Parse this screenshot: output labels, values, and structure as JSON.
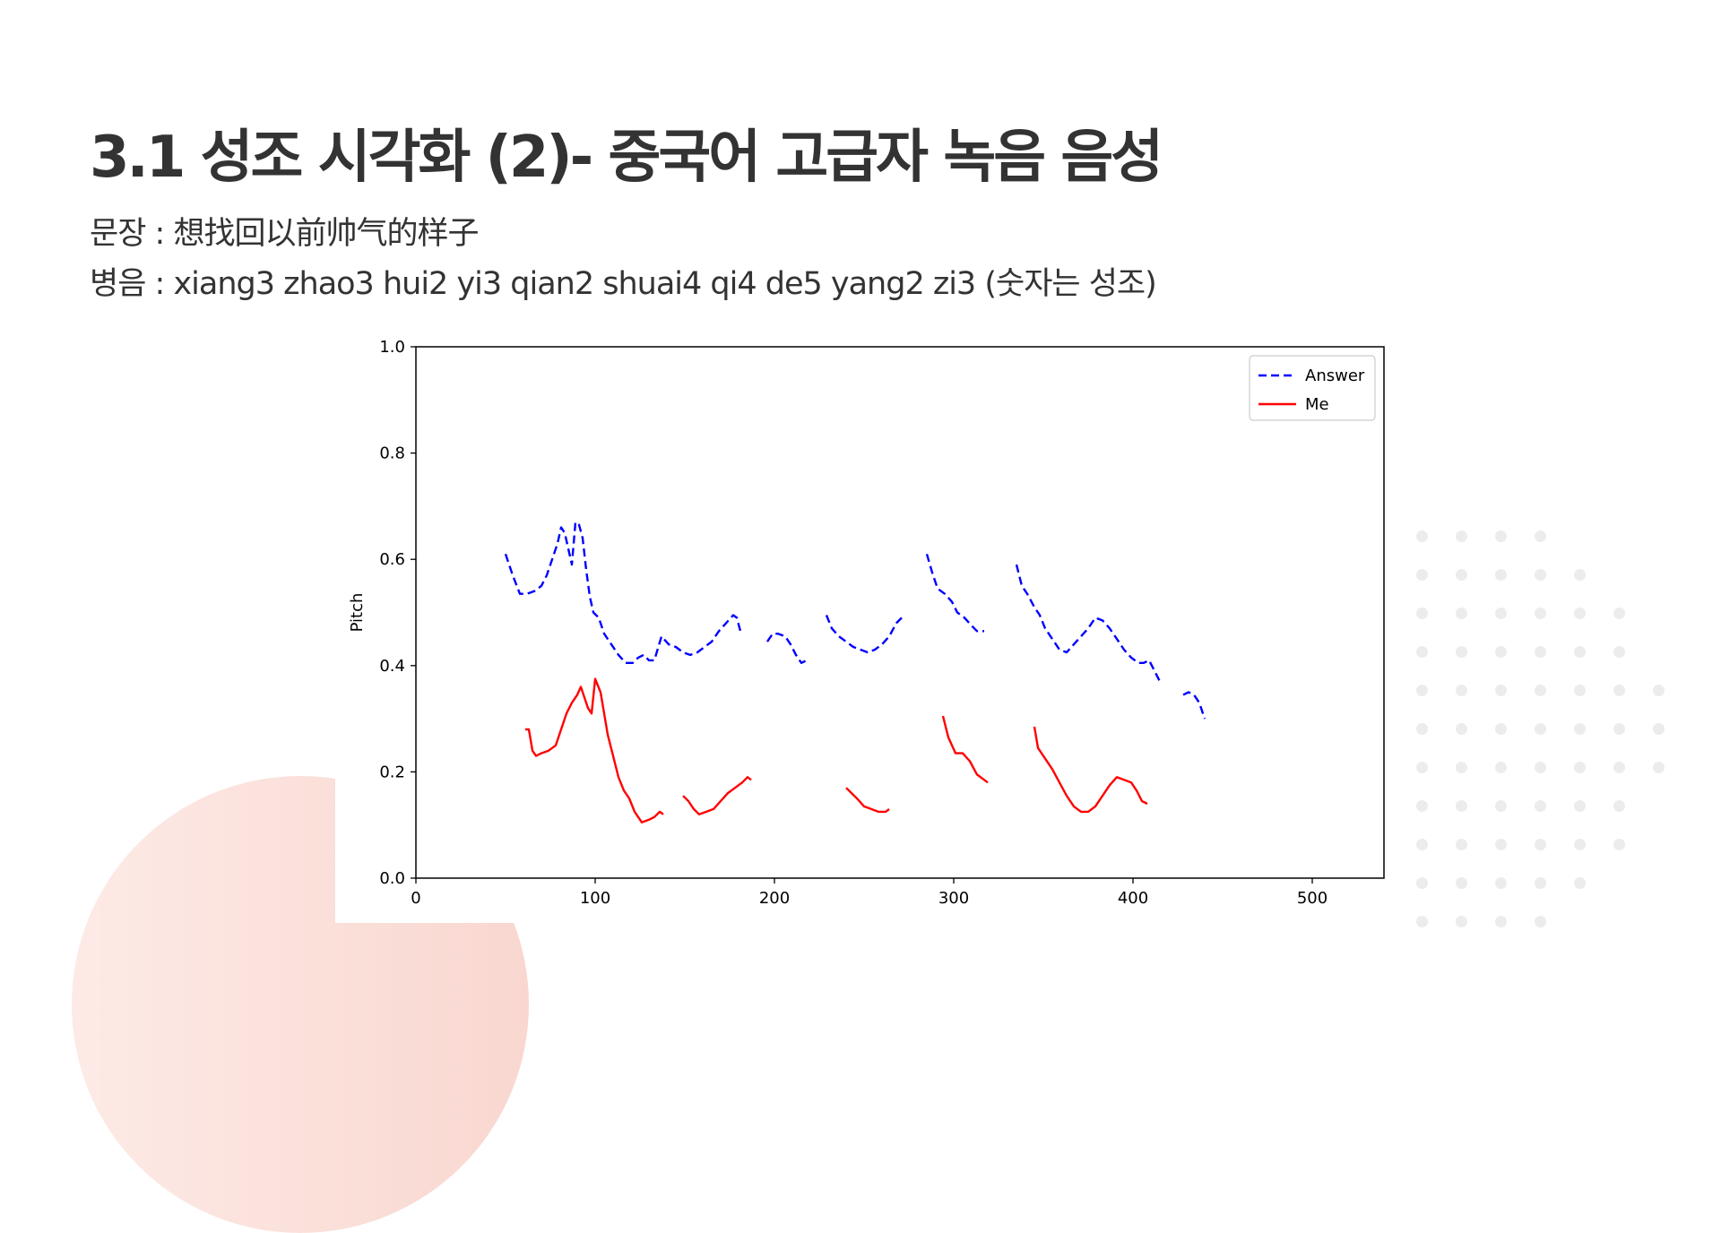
{
  "slide": {
    "title": "3.1 성조 시각화 (2)- 중국어 고급자 녹음 음성",
    "sentence_label": "문장 :",
    "sentence": "想找回以前帅气的样子",
    "pinyin_label": "병음 :",
    "pinyin": "xiang3 zhao3 hui2 yi3 qian2 shuai4 qi4 de5 yang2 zi3",
    "pinyin_note": "(숫자는 성조)"
  },
  "colors": {
    "text": "#333333",
    "answer": "#0000ff",
    "me": "#ff0000",
    "decor_circle": "#f9d7d0",
    "decor_dots": "#ececec"
  },
  "chart_data": {
    "type": "line",
    "title": "",
    "xlabel": "",
    "ylabel": "Pitch",
    "xlim": [
      0,
      540
    ],
    "ylim": [
      0.0,
      1.0
    ],
    "xticks": [
      "0",
      "100",
      "200",
      "300",
      "400",
      "500"
    ],
    "yticks": [
      "0.0",
      "0.2",
      "0.4",
      "0.6",
      "0.8",
      "1.0"
    ],
    "grid": false,
    "legend_position": "top-right",
    "series": [
      {
        "name": "Answer",
        "style": "dashed",
        "color": "#0000ff",
        "segments": [
          [
            [
              50,
              0.61
            ],
            [
              54,
              0.57
            ],
            [
              58,
              0.535
            ],
            [
              62,
              0.535
            ],
            [
              66,
              0.54
            ],
            [
              70,
              0.55
            ],
            [
              73,
              0.57
            ],
            [
              76,
              0.6
            ],
            [
              79,
              0.63
            ],
            [
              81,
              0.66
            ],
            [
              83,
              0.65
            ],
            [
              85,
              0.62
            ],
            [
              87,
              0.59
            ],
            [
              89,
              0.67
            ],
            [
              91,
              0.665
            ],
            [
              93,
              0.64
            ],
            [
              95,
              0.58
            ],
            [
              97,
              0.53
            ],
            [
              99,
              0.5
            ],
            [
              102,
              0.49
            ],
            [
              105,
              0.46
            ],
            [
              109,
              0.44
            ],
            [
              113,
              0.42
            ],
            [
              117,
              0.405
            ],
            [
              121,
              0.405
            ],
            [
              124,
              0.415
            ],
            [
              127,
              0.42
            ],
            [
              130,
              0.41
            ],
            [
              133,
              0.41
            ],
            [
              137,
              0.455
            ],
            [
              141,
              0.44
            ],
            [
              145,
              0.435
            ],
            [
              149,
              0.425
            ],
            [
              153,
              0.42
            ],
            [
              157,
              0.425
            ],
            [
              161,
              0.435
            ],
            [
              165,
              0.445
            ],
            [
              169,
              0.465
            ],
            [
              173,
              0.48
            ],
            [
              177,
              0.495
            ],
            [
              179,
              0.49
            ],
            [
              181,
              0.465
            ]
          ],
          [
            [
              196,
              0.445
            ],
            [
              199,
              0.46
            ],
            [
              202,
              0.46
            ],
            [
              206,
              0.455
            ],
            [
              209,
              0.44
            ],
            [
              212,
              0.42
            ],
            [
              215,
              0.405
            ],
            [
              218,
              0.41
            ]
          ],
          [
            [
              229,
              0.495
            ],
            [
              232,
              0.47
            ],
            [
              236,
              0.455
            ],
            [
              240,
              0.445
            ],
            [
              244,
              0.435
            ],
            [
              248,
              0.43
            ],
            [
              252,
              0.425
            ],
            [
              256,
              0.43
            ],
            [
              260,
              0.44
            ],
            [
              264,
              0.455
            ],
            [
              268,
              0.48
            ],
            [
              271,
              0.49
            ]
          ],
          [
            [
              285,
              0.61
            ],
            [
              288,
              0.575
            ],
            [
              291,
              0.545
            ],
            [
              295,
              0.535
            ],
            [
              299,
              0.52
            ],
            [
              302,
              0.5
            ],
            [
              306,
              0.49
            ],
            [
              310,
              0.475
            ],
            [
              313,
              0.465
            ],
            [
              317,
              0.465
            ]
          ],
          [
            [
              335,
              0.59
            ],
            [
              338,
              0.55
            ],
            [
              341,
              0.535
            ],
            [
              345,
              0.51
            ],
            [
              348,
              0.495
            ],
            [
              351,
              0.47
            ],
            [
              355,
              0.45
            ],
            [
              359,
              0.43
            ],
            [
              363,
              0.425
            ],
            [
              367,
              0.44
            ],
            [
              371,
              0.455
            ],
            [
              375,
              0.47
            ],
            [
              379,
              0.49
            ],
            [
              383,
              0.485
            ],
            [
              387,
              0.47
            ],
            [
              391,
              0.45
            ],
            [
              395,
              0.43
            ],
            [
              399,
              0.415
            ],
            [
              403,
              0.405
            ],
            [
              406,
              0.405
            ],
            [
              409,
              0.41
            ],
            [
              412,
              0.39
            ],
            [
              415,
              0.37
            ]
          ],
          [
            [
              428,
              0.345
            ],
            [
              431,
              0.35
            ],
            [
              434,
              0.345
            ],
            [
              437,
              0.33
            ],
            [
              440,
              0.3
            ]
          ]
        ]
      },
      {
        "name": "Me",
        "style": "solid",
        "color": "#ff0000",
        "segments": [
          [
            [
              61,
              0.28
            ],
            [
              63,
              0.28
            ],
            [
              65,
              0.24
            ],
            [
              67,
              0.23
            ],
            [
              70,
              0.235
            ],
            [
              74,
              0.24
            ],
            [
              78,
              0.25
            ],
            [
              81,
              0.28
            ],
            [
              84,
              0.31
            ],
            [
              87,
              0.33
            ],
            [
              90,
              0.345
            ],
            [
              92,
              0.36
            ],
            [
              94,
              0.34
            ],
            [
              96,
              0.32
            ],
            [
              98,
              0.31
            ],
            [
              100,
              0.375
            ],
            [
              103,
              0.35
            ],
            [
              105,
              0.31
            ],
            [
              107,
              0.27
            ],
            [
              110,
              0.23
            ],
            [
              113,
              0.19
            ],
            [
              116,
              0.165
            ],
            [
              119,
              0.15
            ],
            [
              122,
              0.125
            ],
            [
              126,
              0.105
            ],
            [
              130,
              0.11
            ],
            [
              133,
              0.115
            ],
            [
              136,
              0.125
            ],
            [
              138,
              0.12
            ]
          ],
          [
            [
              149,
              0.155
            ],
            [
              152,
              0.145
            ],
            [
              155,
              0.13
            ],
            [
              158,
              0.12
            ],
            [
              162,
              0.125
            ],
            [
              166,
              0.13
            ],
            [
              170,
              0.145
            ],
            [
              174,
              0.16
            ],
            [
              178,
              0.17
            ],
            [
              182,
              0.18
            ],
            [
              185,
              0.19
            ],
            [
              187,
              0.185
            ]
          ],
          [
            [
              240,
              0.17
            ],
            [
              243,
              0.16
            ],
            [
              246,
              0.15
            ],
            [
              250,
              0.135
            ],
            [
              254,
              0.13
            ],
            [
              258,
              0.125
            ],
            [
              262,
              0.125
            ],
            [
              264,
              0.13
            ]
          ],
          [
            [
              294,
              0.305
            ],
            [
              297,
              0.265
            ],
            [
              301,
              0.235
            ],
            [
              305,
              0.235
            ],
            [
              309,
              0.22
            ],
            [
              313,
              0.195
            ],
            [
              317,
              0.185
            ],
            [
              319,
              0.18
            ]
          ],
          [
            [
              345,
              0.285
            ],
            [
              347,
              0.245
            ],
            [
              351,
              0.225
            ],
            [
              355,
              0.205
            ],
            [
              359,
              0.18
            ],
            [
              363,
              0.155
            ],
            [
              367,
              0.135
            ],
            [
              371,
              0.125
            ],
            [
              375,
              0.125
            ],
            [
              379,
              0.135
            ],
            [
              383,
              0.155
            ],
            [
              387,
              0.175
            ],
            [
              391,
              0.19
            ],
            [
              395,
              0.185
            ],
            [
              399,
              0.18
            ],
            [
              402,
              0.165
            ],
            [
              405,
              0.145
            ],
            [
              408,
              0.14
            ]
          ]
        ]
      }
    ]
  }
}
